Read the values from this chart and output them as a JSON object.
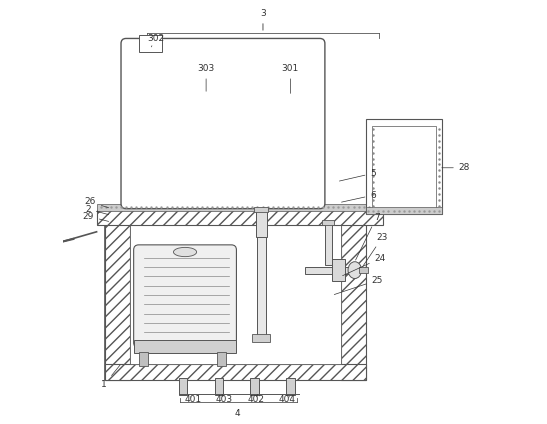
{
  "bg_color": "#ffffff",
  "line_color": "#555555",
  "hatch_color": "#888888",
  "label_color": "#333333",
  "fig_width": 5.47,
  "fig_height": 4.24,
  "dpi": 100
}
